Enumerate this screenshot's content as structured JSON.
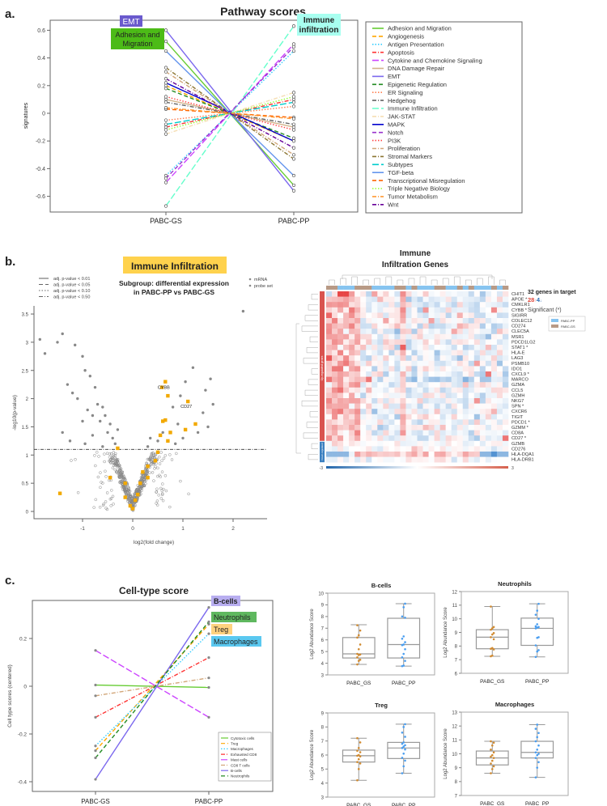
{
  "panels": {
    "a": "a.",
    "b": "b.",
    "c": "c."
  },
  "chart_data": [
    {
      "type": "line",
      "title": "Pathway scores",
      "xlabel": "",
      "ylabel": "signatures",
      "categories": [
        "PABC-GS",
        "PABC-PP"
      ],
      "ylim": [
        -0.7,
        0.65
      ],
      "yticks": [
        -0.6,
        -0.4,
        -0.2,
        0.0,
        0.2,
        0.4,
        0.6
      ],
      "legend_position": "right",
      "annotations": [
        {
          "text": "EMT",
          "color": "#6a5acd"
        },
        {
          "text": "Adhesion and",
          "text2": "Migration",
          "color": "#4cbb17"
        },
        {
          "text": "Immune",
          "text2": "infiltration",
          "color": "#a8fff0"
        }
      ],
      "series": [
        {
          "name": "Adhesion and Migration",
          "color": "#66cc33",
          "dash": "solid",
          "values": [
            0.52,
            -0.52
          ]
        },
        {
          "name": "Angiogenesis",
          "color": "#ffa500",
          "dash": "dashed",
          "values": [
            0.2,
            -0.2
          ]
        },
        {
          "name": "Antigen Presentation",
          "color": "#33ccff",
          "dash": "dotted",
          "values": [
            -0.45,
            0.45
          ]
        },
        {
          "name": "Apoptosis",
          "color": "#ff3333",
          "dash": "dashdot",
          "values": [
            -0.1,
            0.1
          ]
        },
        {
          "name": "Cytokine and Chemokine Signaling",
          "color": "#cc44ff",
          "dash": "longdash",
          "values": [
            -0.5,
            0.5
          ]
        },
        {
          "name": "DNA Damage Repair",
          "color": "#d2b48c",
          "dash": "solid",
          "values": [
            0.1,
            -0.1
          ]
        },
        {
          "name": "EMT",
          "color": "#7b68ee",
          "dash": "solid",
          "values": [
            0.6,
            -0.56
          ]
        },
        {
          "name": "Epigenetic Regulation",
          "color": "#228b22",
          "dash": "dashed",
          "values": [
            0.18,
            -0.18
          ]
        },
        {
          "name": "ER Signaling",
          "color": "#ff7f50",
          "dash": "dotted",
          "values": [
            -0.05,
            0.05
          ]
        },
        {
          "name": "Hedgehog",
          "color": "#666666",
          "dash": "dashdot",
          "values": [
            0.08,
            -0.08
          ]
        },
        {
          "name": "Immune Infiltration",
          "color": "#66ffcc",
          "dash": "longdash",
          "values": [
            -0.67,
            0.63
          ]
        },
        {
          "name": "JAK-STAT",
          "color": "#f5deb3",
          "dash": "dashdot",
          "values": [
            -0.15,
            0.15
          ]
        },
        {
          "name": "MAPK",
          "color": "#0000cd",
          "dash": "solid",
          "values": [
            0.22,
            -0.2
          ]
        },
        {
          "name": "Notch",
          "color": "#9932cc",
          "dash": "dashed",
          "values": [
            -0.47,
            0.48
          ]
        },
        {
          "name": "PI3K",
          "color": "#ff4444",
          "dash": "dotted",
          "values": [
            0.12,
            -0.12
          ]
        },
        {
          "name": "Proliferation",
          "color": "#d2a679",
          "dash": "dashdot",
          "values": [
            0.3,
            -0.3
          ]
        },
        {
          "name": "Stromal Markers",
          "color": "#8b7530",
          "dash": "dashdot",
          "values": [
            0.33,
            -0.33
          ]
        },
        {
          "name": "Subtypes",
          "color": "#00cccc",
          "dash": "longdash",
          "values": [
            -0.08,
            0.08
          ]
        },
        {
          "name": "TGF-beta",
          "color": "#6495ed",
          "dash": "solid",
          "values": [
            0.45,
            -0.45
          ]
        },
        {
          "name": "Transcriptional Misregulation",
          "color": "#ff6600",
          "dash": "dashed",
          "values": [
            0.03,
            -0.03
          ]
        },
        {
          "name": "Triple Negative Biology",
          "color": "#99ff33",
          "dash": "dotted",
          "values": [
            -0.12,
            0.12
          ]
        },
        {
          "name": "Tumor Metabolism",
          "color": "#ff9933",
          "dash": "dashdot",
          "values": [
            0.04,
            -0.04
          ]
        },
        {
          "name": "Wnt",
          "color": "#660099",
          "dash": "dashdot",
          "values": [
            0.25,
            -0.25
          ]
        }
      ]
    },
    {
      "type": "scatter",
      "title": "Immune Infiltration",
      "title_bg": "#ffd24d",
      "subtitle": [
        "Subgroup: differential expression",
        "in PABC-PP vs PABC-GS"
      ],
      "xlabel": "log2(fold change)",
      "ylabel": "-log10(p-value)",
      "xlim": [
        -2.0,
        2.3
      ],
      "ylim": [
        -0.1,
        3.65
      ],
      "xticks": [
        -1,
        0,
        1,
        2
      ],
      "yticks": [
        0.0,
        0.5,
        1.0,
        1.5,
        2.0,
        2.5,
        3.0,
        3.5
      ],
      "threshold": 1.1,
      "line_legend": [
        "adj. p-value < 0.01",
        "adj. p-value < 0.05",
        "adj. p-value < 0.10",
        "adj. p-value < 0.50"
      ],
      "point_legend": [
        "mRNA",
        "probe set"
      ],
      "n_nonsignificant": 560,
      "significant_points": [
        [
          -1.85,
          3.05
        ],
        [
          -1.75,
          2.8
        ],
        [
          -1.5,
          3.0
        ],
        [
          -1.4,
          3.15
        ],
        [
          -1.15,
          2.95
        ],
        [
          -1.0,
          2.75
        ],
        [
          -0.95,
          2.5
        ],
        [
          -1.3,
          2.25
        ],
        [
          -1.2,
          2.1
        ],
        [
          -1.1,
          2.0
        ],
        [
          -0.85,
          2.4
        ],
        [
          -0.75,
          2.2
        ],
        [
          -0.7,
          1.9
        ],
        [
          -0.6,
          1.85
        ],
        [
          -0.9,
          1.8
        ],
        [
          -1.0,
          1.6
        ],
        [
          -0.8,
          1.7
        ],
        [
          -0.65,
          1.6
        ],
        [
          -0.55,
          1.7
        ],
        [
          -0.5,
          1.4
        ],
        [
          -0.4,
          1.3
        ],
        [
          -0.45,
          1.55
        ],
        [
          -0.3,
          1.45
        ],
        [
          -1.4,
          1.4
        ],
        [
          -1.25,
          1.25
        ],
        [
          -0.95,
          1.2
        ],
        [
          -0.6,
          1.15
        ],
        [
          -0.8,
          1.35
        ],
        [
          -0.35,
          1.2
        ],
        [
          2.2,
          3.55
        ],
        [
          1.55,
          2.35
        ],
        [
          1.45,
          2.15
        ],
        [
          1.4,
          1.75
        ],
        [
          1.6,
          1.9
        ],
        [
          1.2,
          2.55
        ],
        [
          1.05,
          2.3
        ],
        [
          0.95,
          2.05
        ],
        [
          0.9,
          1.55
        ],
        [
          1.3,
          1.4
        ],
        [
          0.6,
          1.4
        ],
        [
          0.5,
          1.25
        ],
        [
          0.35,
          1.3
        ],
        [
          0.3,
          1.15
        ],
        [
          0.8,
          1.85
        ],
        [
          0.85,
          1.2
        ],
        [
          1.0,
          1.3
        ],
        [
          1.5,
          1.5
        ]
      ],
      "target_points": [
        [
          0.65,
          2.3
        ],
        [
          0.58,
          2.2
        ],
        [
          0.7,
          2.05
        ],
        [
          1.1,
          1.95
        ],
        [
          1.25,
          1.55
        ],
        [
          1.05,
          1.45
        ],
        [
          0.6,
          1.6
        ],
        [
          0.75,
          1.4
        ],
        [
          0.55,
          1.35
        ],
        [
          0.7,
          1.25
        ],
        [
          0.5,
          1.05
        ],
        [
          0.45,
          0.9
        ],
        [
          0.3,
          0.8
        ],
        [
          0.2,
          0.7
        ],
        [
          0.3,
          0.6
        ],
        [
          0.15,
          0.5
        ],
        [
          0.1,
          0.3
        ],
        [
          0.05,
          0.2
        ],
        [
          0.0,
          0.05
        ],
        [
          -0.05,
          0.1
        ],
        [
          -0.15,
          0.25
        ],
        [
          -0.15,
          0.5
        ],
        [
          -0.45,
          0.6
        ],
        [
          -0.3,
          1.12
        ],
        [
          -1.45,
          0.32
        ],
        [
          0.65,
          1.62
        ]
      ],
      "point_labels": [
        {
          "text": "CYBB",
          "x": 0.65,
          "y": 2.3
        },
        {
          "text": "CD27",
          "x": 1.1,
          "y": 1.95
        }
      ]
    },
    {
      "type": "heatmap",
      "title": [
        "Immune",
        "Infiltration Genes"
      ],
      "rows": [
        "CHIT1",
        "APOE *",
        "CMKLR1",
        "CYBB *",
        "SIGIRR",
        "COLEC12",
        "CD274",
        "CLEC5A",
        "MSR1",
        "PDCD1LG2",
        "STAT1 *",
        "HLA-E",
        "LAG3",
        "PSMB10",
        "IDO1",
        "CXCL9 *",
        "MARCO",
        "GZMA",
        "CCL5",
        "GZMH",
        "NKG7",
        "SPN *",
        "CXCR6",
        "TIGIT",
        "PDCD1 *",
        "GZMM *",
        "CD8A",
        "CD27 *",
        "GZMB",
        "CD276",
        "HLA-DQA1",
        "HLA-DRB1"
      ],
      "column_groups": [
        "GS",
        "GS",
        "PP",
        "PP",
        "PP",
        "GS",
        "GS",
        "GS",
        "PP",
        "PP",
        "PP",
        "PP",
        "GS",
        "GS",
        "PP",
        "GS",
        "PP",
        "PP",
        "PP",
        "GS",
        "GS",
        "PP",
        "PP",
        "GS",
        "PP",
        "GS",
        "PP",
        "PP",
        "PP",
        "GS",
        "PP",
        "GS"
      ],
      "row_group_labels": [
        "Up-regulated genes",
        "Down-regulated"
      ],
      "colorbar": [
        "-3",
        "3"
      ],
      "summary": {
        "count_text": "32 genes in target",
        "up": "28",
        "down": "4",
        "up_arrow": "↑",
        "down_arrow": "↓",
        "significant": "Significant (*)"
      },
      "legend": [
        {
          "label": "PABC-PP",
          "color": "#87c4f0"
        },
        {
          "label": "PABC-GS",
          "color": "#b89a86"
        }
      ]
    },
    {
      "type": "line",
      "title": "Cell-type score",
      "ylabel": "Cell type scores (centered)",
      "categories": [
        "PABC-GS",
        "PABC-PP"
      ],
      "ylim": [
        -0.44,
        0.36
      ],
      "yticks": [
        -0.4,
        -0.2,
        0.0,
        0.2
      ],
      "legend_position": "bottom-right",
      "annotations": [
        {
          "text": "B-cells",
          "color": "#b8aef0"
        },
        {
          "text": "Neutrophils",
          "color": "#5fb85f"
        },
        {
          "text": "Treg",
          "color": "#ffd27f"
        },
        {
          "text": "Macrophages",
          "color": "#5ac8f0"
        }
      ],
      "series": [
        {
          "name": "Cytotoxic cells",
          "color": "#66cc33",
          "dash": "solid",
          "values": [
            0.005,
            -0.005
          ]
        },
        {
          "name": "Treg",
          "color": "#ffa500",
          "dash": "dashed",
          "values": [
            -0.27,
            0.26
          ]
        },
        {
          "name": "Macrophages",
          "color": "#33ccff",
          "dash": "dotted",
          "values": [
            -0.25,
            0.22
          ]
        },
        {
          "name": "Exhausted CD8",
          "color": "#ff3333",
          "dash": "dashdot",
          "values": [
            -0.13,
            0.12
          ]
        },
        {
          "name": "Mast cells",
          "color": "#cc44ff",
          "dash": "longdash",
          "values": [
            0.15,
            -0.13
          ]
        },
        {
          "name": "CD8 T cells",
          "color": "#d2a679",
          "dash": "dashdot",
          "values": [
            -0.04,
            0.035
          ]
        },
        {
          "name": "B-cells",
          "color": "#7b68ee",
          "dash": "solid",
          "values": [
            -0.39,
            0.33
          ]
        },
        {
          "name": "Neutrophils",
          "color": "#228b22",
          "dash": "dashed",
          "values": [
            -0.3,
            0.27
          ]
        }
      ]
    },
    {
      "type": "box",
      "title": "B-cells",
      "ylabel": "Log2 Abundance Score",
      "ylim": [
        3,
        10
      ],
      "categories": [
        "PABC_GS",
        "PABC_PP"
      ],
      "boxes": [
        {
          "whisker_low": 3.9,
          "q1": 4.45,
          "median": 4.8,
          "q3": 6.2,
          "whisker_high": 7.3,
          "color": "#d08a30",
          "points": [
            3.9,
            4.2,
            4.3,
            4.5,
            4.7,
            4.75,
            4.8,
            5.2,
            5.6,
            6.2,
            6.4,
            6.8,
            7.25
          ]
        },
        {
          "whisker_low": 3.75,
          "q1": 4.45,
          "median": 5.6,
          "q3": 7.85,
          "whisker_high": 9.1,
          "color": "#4a9ef0",
          "points": [
            3.75,
            3.8,
            4.2,
            4.5,
            4.8,
            5.2,
            5.55,
            5.6,
            5.8,
            6.1,
            6.3,
            7.9,
            8.0,
            8.8,
            9.1
          ]
        }
      ]
    },
    {
      "type": "box",
      "title": "Neutrophils",
      "ylabel": "Log2 Abundance Score",
      "ylim": [
        6,
        12
      ],
      "categories": [
        "PABC_GS",
        "PABC_PP"
      ],
      "boxes": [
        {
          "whisker_low": 7.25,
          "q1": 7.8,
          "median": 8.65,
          "q3": 9.2,
          "whisker_high": 10.9,
          "color": "#d08a30",
          "points": [
            7.25,
            7.3,
            7.75,
            7.8,
            7.85,
            8.5,
            8.65,
            8.85,
            8.95,
            9.2,
            9.3,
            9.4,
            10.9
          ]
        },
        {
          "whisker_low": 7.2,
          "q1": 8.05,
          "median": 9.3,
          "q3": 10.05,
          "whisker_high": 11.1,
          "color": "#4a9ef0",
          "points": [
            7.2,
            7.6,
            7.7,
            8.05,
            8.6,
            8.65,
            9.3,
            9.35,
            9.4,
            9.45,
            9.6,
            10.0,
            10.3,
            10.6,
            11.1
          ]
        }
      ]
    },
    {
      "type": "box",
      "title": "Treg",
      "ylabel": "Log2 Abundance Score",
      "ylim": [
        3,
        9
      ],
      "categories": [
        "PABC_GS",
        "PABC_PP"
      ],
      "boxes": [
        {
          "whisker_low": 4.2,
          "q1": 5.5,
          "median": 5.95,
          "q3": 6.35,
          "whisker_high": 7.2,
          "color": "#d08a30",
          "points": [
            4.2,
            5.0,
            5.4,
            5.5,
            5.7,
            5.9,
            5.95,
            6.0,
            6.2,
            6.3,
            6.5,
            6.9,
            7.2
          ]
        },
        {
          "whisker_low": 4.7,
          "q1": 5.75,
          "median": 6.5,
          "q3": 6.9,
          "whisker_high": 8.2,
          "color": "#4a9ef0",
          "points": [
            4.7,
            5.2,
            5.6,
            5.8,
            6.1,
            6.4,
            6.5,
            6.6,
            6.7,
            6.8,
            6.9,
            7.3,
            7.6,
            8.0,
            8.2
          ]
        }
      ]
    },
    {
      "type": "box",
      "title": "Macrophages",
      "ylabel": "Log2 Abundance Score",
      "ylim": [
        7,
        13
      ],
      "categories": [
        "PABC_GS",
        "PABC_PP"
      ],
      "boxes": [
        {
          "whisker_low": 8.6,
          "q1": 9.2,
          "median": 9.7,
          "q3": 10.2,
          "whisker_high": 10.9,
          "color": "#d08a30",
          "points": [
            8.6,
            8.9,
            9.1,
            9.3,
            9.5,
            9.7,
            9.8,
            9.9,
            10.1,
            10.3,
            10.6,
            10.8,
            10.9
          ]
        },
        {
          "whisker_low": 8.3,
          "q1": 9.7,
          "median": 10.1,
          "q3": 10.9,
          "whisker_high": 12.1,
          "color": "#4a9ef0",
          "points": [
            8.3,
            9.0,
            9.4,
            9.7,
            9.9,
            10.0,
            10.1,
            10.3,
            10.6,
            10.9,
            11.2,
            11.5,
            11.8,
            12.1
          ]
        }
      ]
    }
  ]
}
